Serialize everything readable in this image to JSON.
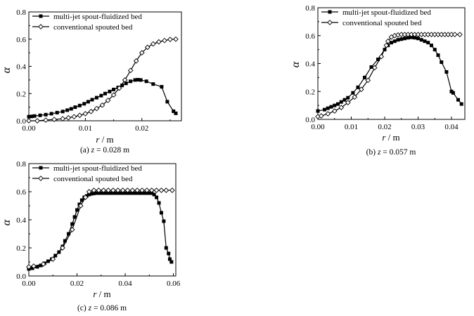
{
  "chart_data": [
    {
      "type": "line",
      "caption_prefix": "(a)",
      "caption_var": "z",
      "caption_rest": " = 0.028 m",
      "xlabel_var": "r",
      "xlabel_unit": " / m",
      "ylabel": "α",
      "xlim": [
        0,
        0.027
      ],
      "ylim": [
        0,
        0.8
      ],
      "xticks": [
        0,
        0.01,
        0.02
      ],
      "xtick_labels": [
        "0.00",
        "0.01",
        "0.02"
      ],
      "yticks": [
        0,
        0.2,
        0.4,
        0.6,
        0.8
      ],
      "ytick_labels": [
        "0.0",
        "0.2",
        "0.4",
        "0.6",
        "0.8"
      ],
      "legend_position": "top-left",
      "series": [
        {
          "name": "multi-jet spout-fluidized bed",
          "marker": "square",
          "x": [
            0.0,
            0.0005,
            0.001,
            0.002,
            0.003,
            0.004,
            0.005,
            0.006,
            0.0068,
            0.0075,
            0.0082,
            0.009,
            0.0098,
            0.0105,
            0.0112,
            0.012,
            0.0128,
            0.0135,
            0.0143,
            0.015,
            0.0158,
            0.0165,
            0.0172,
            0.018,
            0.0188,
            0.0193,
            0.0198,
            0.0208,
            0.022,
            0.0235,
            0.0245,
            0.0256,
            0.026
          ],
          "y": [
            0.03,
            0.032,
            0.035,
            0.04,
            0.045,
            0.052,
            0.06,
            0.068,
            0.078,
            0.088,
            0.1,
            0.112,
            0.125,
            0.14,
            0.155,
            0.17,
            0.185,
            0.2,
            0.215,
            0.23,
            0.245,
            0.26,
            0.275,
            0.29,
            0.3,
            0.302,
            0.3,
            0.29,
            0.27,
            0.25,
            0.14,
            0.07,
            0.055
          ]
        },
        {
          "name": "conventional spouted bed",
          "marker": "diamond",
          "x": [
            0.0,
            0.0015,
            0.003,
            0.0045,
            0.006,
            0.007,
            0.008,
            0.009,
            0.01,
            0.011,
            0.012,
            0.013,
            0.014,
            0.015,
            0.016,
            0.017,
            0.018,
            0.019,
            0.02,
            0.021,
            0.022,
            0.023,
            0.024,
            0.025,
            0.026
          ],
          "y": [
            0.0,
            0.0,
            0.005,
            0.01,
            0.015,
            0.022,
            0.03,
            0.04,
            0.052,
            0.068,
            0.09,
            0.115,
            0.15,
            0.19,
            0.24,
            0.3,
            0.37,
            0.44,
            0.5,
            0.54,
            0.565,
            0.58,
            0.59,
            0.598,
            0.6
          ]
        }
      ]
    },
    {
      "type": "line",
      "caption_prefix": "(b)",
      "caption_var": "z",
      "caption_rest": " = 0.057 m",
      "xlabel_var": "r",
      "xlabel_unit": " / m",
      "ylabel": "α",
      "xlim": [
        0,
        0.044
      ],
      "ylim": [
        0,
        0.8
      ],
      "xticks": [
        0,
        0.01,
        0.02,
        0.03,
        0.04
      ],
      "xtick_labels": [
        "0.00",
        "0.01",
        "0.02",
        "0.03",
        "0.04"
      ],
      "yticks": [
        0,
        0.2,
        0.4,
        0.6,
        0.8
      ],
      "ytick_labels": [
        "0.0",
        "0.2",
        "0.4",
        "0.6",
        "0.8"
      ],
      "legend_position": "top-left",
      "series": [
        {
          "name": "multi-jet spout-fluidized bed",
          "marker": "square",
          "x": [
            0.0,
            0.002,
            0.003,
            0.004,
            0.005,
            0.006,
            0.007,
            0.008,
            0.009,
            0.0105,
            0.012,
            0.014,
            0.016,
            0.018,
            0.02,
            0.021,
            0.022,
            0.023,
            0.024,
            0.025,
            0.026,
            0.027,
            0.028,
            0.029,
            0.03,
            0.031,
            0.032,
            0.033,
            0.034,
            0.035,
            0.036,
            0.037,
            0.0385,
            0.04,
            0.0405,
            0.042,
            0.043
          ],
          "y": [
            0.06,
            0.07,
            0.08,
            0.09,
            0.1,
            0.11,
            0.125,
            0.14,
            0.155,
            0.19,
            0.23,
            0.3,
            0.375,
            0.43,
            0.5,
            0.53,
            0.55,
            0.56,
            0.57,
            0.575,
            0.58,
            0.585,
            0.588,
            0.585,
            0.58,
            0.57,
            0.56,
            0.55,
            0.53,
            0.5,
            0.46,
            0.41,
            0.34,
            0.2,
            0.19,
            0.14,
            0.11
          ]
        },
        {
          "name": "conventional spouted bed",
          "marker": "diamond",
          "x": [
            0.0,
            0.001,
            0.003,
            0.005,
            0.007,
            0.009,
            0.011,
            0.013,
            0.015,
            0.017,
            0.019,
            0.0205,
            0.021,
            0.022,
            0.023,
            0.024,
            0.025,
            0.026,
            0.027,
            0.028,
            0.029,
            0.03,
            0.031,
            0.032,
            0.033,
            0.034,
            0.035,
            0.036,
            0.037,
            0.038,
            0.039,
            0.04,
            0.041,
            0.0425
          ],
          "y": [
            0.02,
            0.025,
            0.04,
            0.06,
            0.085,
            0.12,
            0.16,
            0.215,
            0.28,
            0.37,
            0.45,
            0.53,
            0.56,
            0.59,
            0.6,
            0.605,
            0.608,
            0.608,
            0.608,
            0.608,
            0.608,
            0.608,
            0.608,
            0.608,
            0.608,
            0.608,
            0.608,
            0.608,
            0.608,
            0.608,
            0.608,
            0.608,
            0.608,
            0.608
          ]
        }
      ]
    },
    {
      "type": "line",
      "caption_prefix": "(c)",
      "caption_var": "z",
      "caption_rest": " = 0.086 m",
      "xlabel_var": "r",
      "xlabel_unit": " / m",
      "ylabel": "α",
      "xlim": [
        0,
        0.061
      ],
      "ylim": [
        0,
        0.8
      ],
      "xticks": [
        0,
        0.02,
        0.04,
        0.06
      ],
      "xtick_labels": [
        "0.00",
        "0.02",
        "0.04",
        "0.06"
      ],
      "yticks": [
        0,
        0.2,
        0.4,
        0.6,
        0.8
      ],
      "ytick_labels": [
        "0.0",
        "0.2",
        "0.4",
        "0.6",
        "0.8"
      ],
      "legend_position": "top-left",
      "series": [
        {
          "name": "multi-jet spout-fluidized bed",
          "marker": "square",
          "x": [
            0.0,
            0.0015,
            0.0035,
            0.005,
            0.0065,
            0.008,
            0.0095,
            0.011,
            0.0125,
            0.014,
            0.015,
            0.0165,
            0.018,
            0.019,
            0.02,
            0.021,
            0.022,
            0.023,
            0.024,
            0.025,
            0.026,
            0.027,
            0.028,
            0.029,
            0.03,
            0.031,
            0.032,
            0.033,
            0.034,
            0.035,
            0.036,
            0.037,
            0.038,
            0.039,
            0.04,
            0.041,
            0.042,
            0.043,
            0.044,
            0.045,
            0.046,
            0.047,
            0.048,
            0.049,
            0.05,
            0.051,
            0.052,
            0.053,
            0.054,
            0.055,
            0.056,
            0.057,
            0.058,
            0.0585,
            0.0592
          ],
          "y": [
            0.05,
            0.055,
            0.065,
            0.075,
            0.09,
            0.105,
            0.12,
            0.145,
            0.17,
            0.21,
            0.25,
            0.3,
            0.37,
            0.42,
            0.47,
            0.51,
            0.54,
            0.56,
            0.57,
            0.58,
            0.585,
            0.588,
            0.59,
            0.59,
            0.59,
            0.59,
            0.59,
            0.59,
            0.59,
            0.59,
            0.59,
            0.59,
            0.59,
            0.59,
            0.59,
            0.59,
            0.59,
            0.59,
            0.59,
            0.59,
            0.59,
            0.59,
            0.59,
            0.59,
            0.59,
            0.59,
            0.58,
            0.56,
            0.52,
            0.45,
            0.39,
            0.2,
            0.16,
            0.12,
            0.1
          ]
        },
        {
          "name": "conventional spouted bed",
          "marker": "diamond",
          "x": [
            0.0,
            0.002,
            0.006,
            0.01,
            0.014,
            0.018,
            0.0215,
            0.0235,
            0.025,
            0.027,
            0.029,
            0.031,
            0.033,
            0.035,
            0.037,
            0.039,
            0.041,
            0.043,
            0.045,
            0.047,
            0.049,
            0.051,
            0.053,
            0.055,
            0.057,
            0.0595
          ],
          "y": [
            0.065,
            0.07,
            0.085,
            0.12,
            0.2,
            0.33,
            0.5,
            0.56,
            0.6,
            0.61,
            0.61,
            0.61,
            0.61,
            0.61,
            0.61,
            0.61,
            0.61,
            0.61,
            0.61,
            0.61,
            0.61,
            0.61,
            0.61,
            0.61,
            0.61,
            0.61
          ]
        }
      ]
    }
  ]
}
